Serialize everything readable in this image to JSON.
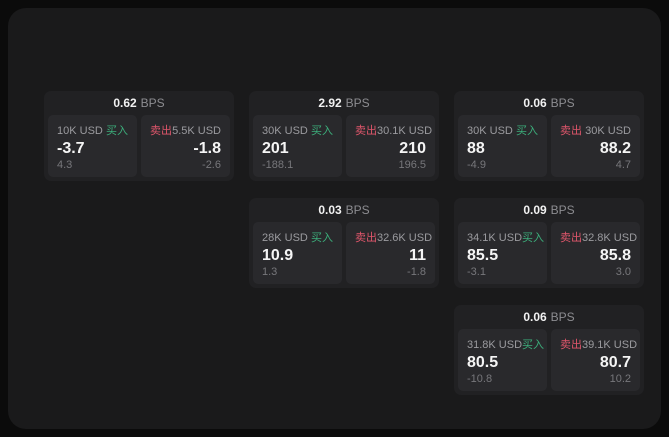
{
  "labels": {
    "bps_unit": "BPS",
    "buy": "买入",
    "sell": "卖出"
  },
  "colors": {
    "outer_bg": "#0b0b0b",
    "panel_bg": "#1a1a1b",
    "card_bg": "#212123",
    "tile_bg": "#29292c",
    "text_primary": "#f5f5f5",
    "text_secondary": "#9b9b9f",
    "text_dim": "#77777b",
    "buy_green": "#3cae7b",
    "sell_red": "#e0566b"
  },
  "cards": [
    {
      "bps": "0.62",
      "buy": {
        "amount": "10K USD",
        "value": "-3.7",
        "sub": "4.3"
      },
      "sell": {
        "amount": "5.5K USD",
        "value": "-1.8",
        "sub": "-2.6"
      }
    },
    {
      "bps": "2.92",
      "buy": {
        "amount": "30K USD",
        "value": "201",
        "sub": "-188.1"
      },
      "sell": {
        "amount": "30.1K USD",
        "value": "210",
        "sub": "196.5"
      }
    },
    {
      "bps": "0.06",
      "buy": {
        "amount": "30K USD",
        "value": "88",
        "sub": "-4.9"
      },
      "sell": {
        "amount": "30K USD",
        "value": "88.2",
        "sub": "4.7"
      }
    },
    {
      "bps": "0.03",
      "buy": {
        "amount": "28K USD",
        "value": "10.9",
        "sub": "1.3"
      },
      "sell": {
        "amount": "32.6K USD",
        "value": "11",
        "sub": "-1.8"
      }
    },
    {
      "bps": "0.09",
      "buy": {
        "amount": "34.1K USD",
        "value": "85.5",
        "sub": "-3.1"
      },
      "sell": {
        "amount": "32.8K USD",
        "value": "85.8",
        "sub": "3.0"
      }
    },
    {
      "bps": "0.06",
      "buy": {
        "amount": "31.8K USD",
        "value": "80.5",
        "sub": "-10.8"
      },
      "sell": {
        "amount": "39.1K USD",
        "value": "80.7",
        "sub": "10.2"
      }
    }
  ]
}
